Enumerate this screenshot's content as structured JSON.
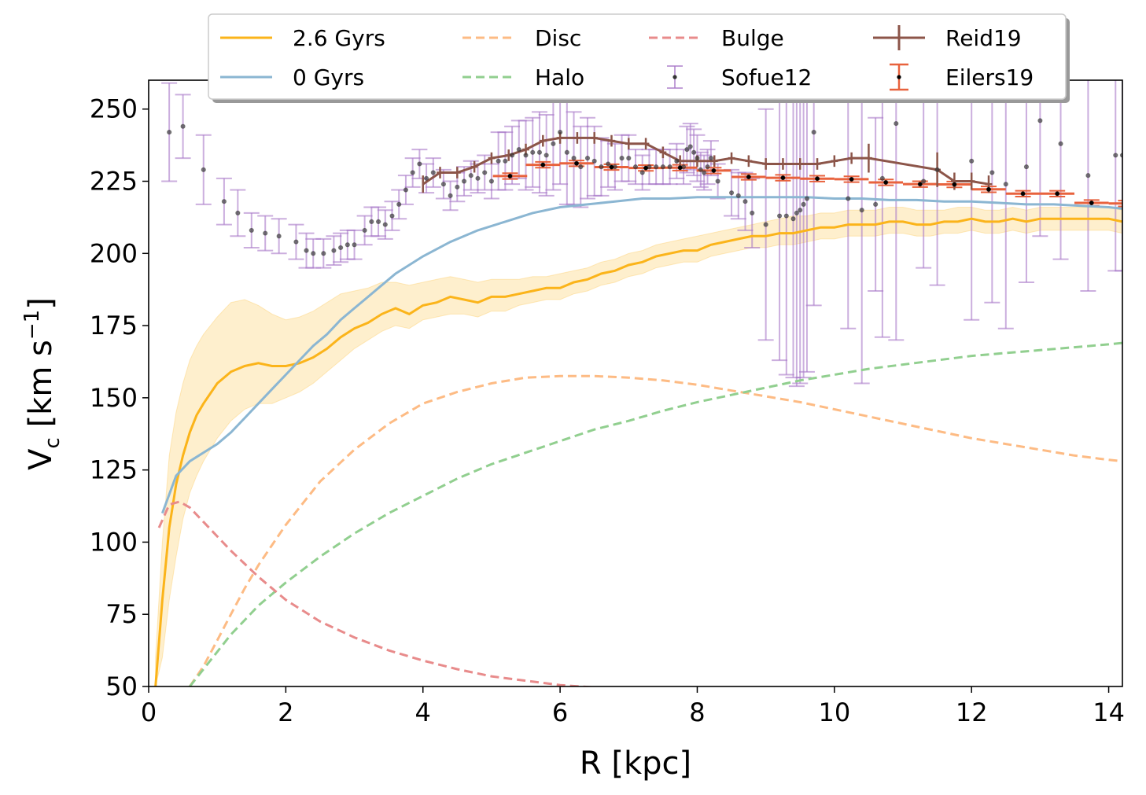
{
  "chart_data": {
    "type": "line",
    "title": "",
    "xlabel": "R [kpc]",
    "ylabel": {
      "base": "V",
      "sub": "c",
      "unit_open": " [km s",
      "sup": "−1",
      "unit_close": "]"
    },
    "xlim": [
      0,
      14.2
    ],
    "ylim": [
      50,
      260
    ],
    "xticks": [
      0,
      2,
      4,
      6,
      8,
      10,
      12,
      14
    ],
    "yticks": [
      50,
      75,
      100,
      125,
      150,
      175,
      200,
      225,
      250
    ],
    "legend_position": "upper center, outside top",
    "series": [
      {
        "name": "2.6 Gyrs",
        "style": "solid",
        "color": "#fbb41a",
        "x": [
          0.1,
          0.2,
          0.3,
          0.4,
          0.5,
          0.6,
          0.7,
          0.8,
          1.0,
          1.2,
          1.4,
          1.6,
          1.8,
          2.0,
          2.2,
          2.4,
          2.6,
          2.8,
          3.0,
          3.2,
          3.4,
          3.6,
          3.8,
          4.0,
          4.2,
          4.4,
          4.6,
          4.8,
          5.0,
          5.2,
          5.4,
          5.6,
          5.8,
          6.0,
          6.2,
          6.4,
          6.6,
          6.8,
          7.0,
          7.2,
          7.4,
          7.6,
          7.8,
          8.0,
          8.2,
          8.4,
          8.6,
          8.8,
          9.0,
          9.2,
          9.4,
          9.6,
          9.8,
          10.0,
          10.2,
          10.4,
          10.6,
          10.8,
          11.0,
          11.2,
          11.4,
          11.6,
          11.8,
          12.0,
          12.2,
          12.4,
          12.6,
          12.8,
          13.0,
          13.2,
          13.4,
          13.6,
          13.8,
          14.0,
          14.2
        ],
        "y": [
          50,
          80,
          105,
          120,
          130,
          138,
          144,
          148,
          155,
          159,
          161,
          162,
          161,
          161,
          162,
          164,
          167,
          171,
          174,
          176,
          179,
          181,
          179,
          182,
          183,
          185,
          184,
          183,
          185,
          185,
          186,
          187,
          188,
          188,
          190,
          191,
          193,
          194,
          196,
          197,
          199,
          200,
          201,
          201,
          203,
          204,
          205,
          206,
          206,
          207,
          207,
          208,
          209,
          209,
          210,
          210,
          210,
          211,
          211,
          210,
          210,
          211,
          211,
          212,
          211,
          211,
          212,
          211,
          212,
          212,
          212,
          212,
          212,
          212,
          211
        ],
        "band_low": [
          50,
          60,
          80,
          95,
          108,
          117,
          123,
          128,
          136,
          142,
          146,
          148,
          148,
          150,
          152,
          155,
          159,
          163,
          167,
          170,
          173,
          175,
          174,
          177,
          178,
          179,
          179,
          178,
          180,
          180,
          182,
          183,
          184,
          184,
          186,
          187,
          189,
          190,
          192,
          193,
          195,
          196,
          197,
          197,
          199,
          200,
          201,
          202,
          202,
          203,
          203,
          204,
          205,
          205,
          206,
          206,
          206,
          207,
          207,
          206,
          206,
          207,
          207,
          208,
          207,
          207,
          208,
          207,
          208,
          208,
          208,
          208,
          208,
          208,
          207
        ],
        "band_high": [
          60,
          100,
          130,
          145,
          155,
          163,
          168,
          172,
          178,
          183,
          184,
          182,
          179,
          177,
          178,
          180,
          183,
          186,
          187,
          188,
          190,
          190,
          189,
          190,
          191,
          192,
          191,
          190,
          191,
          191,
          191,
          192,
          192,
          193,
          194,
          195,
          197,
          198,
          200,
          201,
          203,
          204,
          205,
          206,
          207,
          208,
          209,
          210,
          211,
          212,
          213,
          213,
          214,
          214,
          215,
          215,
          215,
          216,
          216,
          215,
          215,
          215,
          216,
          216,
          215,
          215,
          216,
          215,
          216,
          216,
          216,
          216,
          216,
          216,
          215
        ]
      },
      {
        "name": "0 Gyrs",
        "style": "solid",
        "color": "#8bb6d2",
        "x": [
          0.2,
          0.4,
          0.6,
          0.8,
          1.0,
          1.2,
          1.4,
          1.6,
          1.8,
          2.0,
          2.2,
          2.4,
          2.6,
          2.8,
          3.0,
          3.2,
          3.4,
          3.6,
          3.8,
          4.0,
          4.4,
          4.8,
          5.2,
          5.6,
          6.0,
          6.4,
          6.8,
          7.2,
          7.6,
          8.0,
          8.4,
          8.8,
          9.2,
          9.6,
          10.0,
          10.4,
          10.8,
          11.2,
          11.6,
          12.0,
          12.4,
          12.8,
          13.2,
          13.6,
          14.0,
          14.2
        ],
        "y": [
          110,
          123,
          128,
          131,
          134,
          138,
          143,
          148,
          153,
          158,
          163,
          168,
          172,
          177,
          181,
          185,
          189,
          193,
          196,
          199,
          204,
          208,
          211,
          214,
          216,
          217,
          218,
          219,
          219,
          219.5,
          219.5,
          219.5,
          219.5,
          219.5,
          219,
          219,
          218.5,
          218.5,
          218,
          218,
          217.5,
          217,
          217,
          216.5,
          216,
          215.5
        ]
      },
      {
        "name": "Disc",
        "style": "dashed",
        "color": "#fdbb84",
        "x": [
          0.6,
          0.8,
          1.0,
          1.2,
          1.4,
          1.6,
          1.8,
          2.0,
          2.5,
          3.0,
          3.5,
          4.0,
          4.5,
          5.0,
          5.5,
          6.0,
          6.5,
          7.0,
          7.5,
          8.0,
          8.5,
          9.0,
          9.5,
          10.0,
          10.5,
          11.0,
          11.5,
          12.0,
          12.5,
          13.0,
          13.5,
          14.0,
          14.2
        ],
        "y": [
          50,
          57,
          66,
          75,
          84,
          92,
          99,
          106,
          121,
          132,
          141,
          148,
          152,
          155,
          157,
          157.5,
          157.5,
          157,
          156,
          154.5,
          152.5,
          150.5,
          148.5,
          146,
          143.5,
          141,
          138.5,
          136,
          134,
          132,
          130,
          128.5,
          128
        ]
      },
      {
        "name": "Halo",
        "style": "dashed",
        "color": "#91cf8f",
        "x": [
          0.6,
          0.8,
          1.0,
          1.2,
          1.4,
          1.6,
          1.8,
          2.0,
          2.5,
          3.0,
          3.5,
          4.0,
          4.5,
          5.0,
          5.5,
          6.0,
          6.5,
          7.0,
          7.5,
          8.0,
          8.5,
          9.0,
          9.5,
          10.0,
          10.5,
          11.0,
          11.5,
          12.0,
          12.5,
          13.0,
          13.5,
          14.0,
          14.2
        ],
        "y": [
          50,
          56,
          62,
          68,
          73,
          78,
          82,
          86,
          95,
          103,
          110,
          116,
          122,
          127,
          131,
          135,
          139,
          142,
          145.5,
          148.5,
          151,
          153.5,
          156,
          158,
          160,
          161.5,
          163,
          164.5,
          165.5,
          166.5,
          167.5,
          168.5,
          169
        ]
      },
      {
        "name": "Bulge",
        "style": "dashed",
        "color": "#e88b8b",
        "x": [
          0.15,
          0.3,
          0.45,
          0.6,
          0.8,
          1.0,
          1.2,
          1.4,
          1.6,
          1.8,
          2.0,
          2.5,
          3.0,
          3.5,
          4.0,
          4.5,
          5.0,
          5.5,
          6.0,
          6.6
        ],
        "y": [
          105,
          113,
          114,
          112,
          107,
          102,
          97,
          92.5,
          88,
          84,
          80,
          72.5,
          67,
          62.5,
          59,
          56,
          53.5,
          52,
          50.5,
          49.5
        ]
      }
    ],
    "errorbar_series": [
      {
        "name": "Sofue12",
        "color": "#a878c8",
        "marker_color": "#333333",
        "x": [
          0.3,
          0.5,
          0.8,
          1.1,
          1.3,
          1.5,
          1.7,
          1.9,
          2.15,
          2.3,
          2.4,
          2.55,
          2.7,
          2.8,
          2.9,
          3.0,
          3.15,
          3.25,
          3.35,
          3.45,
          3.55,
          3.65,
          3.75,
          3.85,
          3.95,
          4.05,
          4.15,
          4.3,
          4.4,
          4.5,
          4.6,
          4.7,
          4.8,
          4.9,
          5.0,
          5.1,
          5.2,
          5.3,
          5.4,
          5.5,
          5.6,
          5.7,
          5.8,
          5.9,
          6.0,
          6.1,
          6.2,
          6.3,
          6.4,
          6.5,
          6.6,
          6.7,
          6.8,
          6.9,
          7.0,
          7.1,
          7.2,
          7.3,
          7.4,
          7.5,
          7.6,
          7.7,
          7.8,
          7.85,
          7.9,
          7.95,
          8.0,
          8.05,
          8.1,
          8.15,
          8.2,
          8.3,
          8.5,
          8.6,
          8.7,
          8.8,
          9.0,
          9.2,
          9.3,
          9.4,
          9.45,
          9.5,
          9.55,
          9.6,
          9.7,
          10.2,
          10.4,
          10.6,
          10.7,
          10.9,
          11.3,
          11.5,
          12.0,
          12.3,
          12.5,
          12.8,
          13.0,
          13.3,
          13.7,
          14.1,
          14.2
        ],
        "y": [
          242,
          244,
          229,
          218,
          214,
          208,
          207,
          206,
          204,
          201,
          200,
          200,
          201,
          202,
          203,
          203,
          208,
          211,
          211,
          210,
          213,
          217,
          222,
          228,
          231,
          226,
          228,
          224,
          220,
          223,
          225,
          227,
          226,
          228,
          225,
          232,
          232,
          234,
          236,
          234,
          235,
          235,
          234,
          238,
          242,
          235,
          233,
          230,
          233,
          232,
          230,
          231,
          230,
          233,
          233,
          230,
          228,
          230,
          230,
          230,
          230,
          232,
          230,
          236,
          237,
          235,
          233,
          229,
          228,
          230,
          233,
          225,
          221,
          220,
          218,
          214,
          210,
          213,
          213,
          212,
          214,
          215,
          217,
          219,
          242,
          219,
          215,
          217,
          226,
          245,
          225,
          229,
          232,
          228,
          224,
          230,
          246,
          238,
          227,
          234,
          234
        ],
        "yerr": [
          17,
          11,
          12,
          8,
          8,
          6,
          6,
          6,
          6,
          6,
          5,
          5,
          5,
          5,
          5,
          5,
          5,
          5,
          5,
          5,
          5,
          5,
          5,
          5,
          5,
          5,
          5,
          5,
          5,
          5,
          5,
          5,
          5,
          6,
          6,
          10,
          10,
          10,
          10,
          12,
          12,
          14,
          14,
          16,
          18,
          18,
          16,
          14,
          14,
          12,
          10,
          8,
          8,
          8,
          8,
          6,
          6,
          6,
          6,
          6,
          6,
          6,
          6,
          8,
          8,
          8,
          8,
          6,
          6,
          6,
          6,
          6,
          8,
          8,
          10,
          12,
          40,
          50,
          55,
          55,
          60,
          60,
          60,
          60,
          60,
          45,
          60,
          30,
          55,
          75,
          30,
          40,
          55,
          45,
          50,
          40,
          40,
          40,
          40,
          40,
          40
        ]
      },
      {
        "name": "Eilers19",
        "color": "#e8623d",
        "marker_color": "#000000",
        "x": [
          5.27,
          5.75,
          6.24,
          6.75,
          7.25,
          7.75,
          8.24,
          8.75,
          9.25,
          9.75,
          10.25,
          10.75,
          11.25,
          11.75,
          12.25,
          12.75,
          13.25,
          13.75,
          14.25
        ],
        "y": [
          226.8,
          230.7,
          231.2,
          229.9,
          229.6,
          229.7,
          228.7,
          226.5,
          226.2,
          225.9,
          225.7,
          224.6,
          224.0,
          223.9,
          222.2,
          220.7,
          220.7,
          217.5,
          217.3
        ],
        "xerr": [
          0.25,
          0.25,
          0.25,
          0.25,
          0.25,
          0.25,
          0.25,
          0.25,
          0.25,
          0.25,
          0.25,
          0.25,
          0.25,
          0.25,
          0.25,
          0.25,
          0.25,
          0.25,
          0.25
        ],
        "yerr": [
          1.0,
          1.0,
          1.0,
          1.0,
          1.0,
          1.0,
          1.0,
          1.0,
          1.0,
          1.0,
          1.0,
          1.0,
          1.0,
          1.0,
          1.0,
          1.0,
          1.0,
          1.0,
          1.0
        ]
      },
      {
        "name": "Reid19",
        "color": "#8c5549",
        "x": [
          4.0,
          4.25,
          4.5,
          4.75,
          5.0,
          5.25,
          5.5,
          5.75,
          6.0,
          6.25,
          6.5,
          6.75,
          7.0,
          7.25,
          7.5,
          7.75,
          8.0,
          8.25,
          8.5,
          8.75,
          9.0,
          9.25,
          9.5,
          9.75,
          10.0,
          10.25,
          10.5,
          11.5,
          11.75,
          12.0,
          12.25
        ],
        "y": [
          224,
          228,
          228,
          230,
          233,
          234,
          236,
          239,
          240,
          240,
          240,
          239,
          238,
          238,
          235,
          232,
          232,
          232,
          233,
          232,
          231,
          231,
          231,
          231,
          232,
          233,
          233,
          229,
          225,
          225,
          224
        ],
        "xerr": [
          0,
          0.05,
          0.05,
          0.05,
          0.05,
          0.05,
          0.05,
          0.05,
          0.05,
          0.05,
          0.05,
          0.05,
          0.05,
          0.05,
          0.05,
          0.05,
          0.05,
          0.05,
          0.05,
          0.05,
          0.05,
          0.05,
          0.05,
          0.05,
          0.05,
          0.05,
          0.05,
          0.05,
          0.05,
          0.05,
          0.05
        ],
        "yerr": [
          3,
          2,
          2,
          2,
          2,
          2,
          2,
          2,
          2,
          2,
          2,
          2,
          2,
          2,
          2,
          2,
          2,
          2,
          2,
          2,
          2,
          2,
          2,
          2,
          2,
          2,
          5,
          6,
          3,
          3,
          3
        ]
      }
    ],
    "legend": [
      {
        "label": "2.6 Gyrs",
        "type": "line",
        "color": "#fbb41a"
      },
      {
        "label": "0 Gyrs",
        "type": "line",
        "color": "#8bb6d2"
      },
      {
        "label": "Disc",
        "type": "dashed",
        "color": "#fdbb84"
      },
      {
        "label": "Halo",
        "type": "dashed",
        "color": "#91cf8f"
      },
      {
        "label": "Bulge",
        "type": "dashed",
        "color": "#e88b8b"
      },
      {
        "label": "Sofue12",
        "type": "errorbar",
        "color": "#a878c8",
        "marker": "#333333"
      },
      {
        "label": "Reid19",
        "type": "errorbar-line",
        "color": "#8c5549"
      },
      {
        "label": "Eilers19",
        "type": "errorbar-cap",
        "color": "#e8623d",
        "marker": "#000000"
      }
    ]
  }
}
